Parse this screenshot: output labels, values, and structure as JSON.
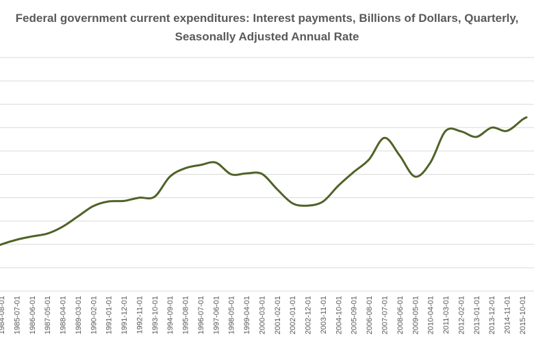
{
  "chart_data": {
    "type": "line",
    "title_lines": [
      "Federal government current expenditures: Interest payments, Billions of Dollars, Quarterly,",
      "Seasonally Adjusted Annual Rate"
    ],
    "xlabel": "",
    "ylabel": "",
    "grid": true,
    "legend": "none",
    "line_color": "#4f6228",
    "ylim": [
      0,
      500
    ],
    "x_tick_labels": [
      "1984-08-01",
      "1985-07-01",
      "1986-06-01",
      "1987-05-01",
      "1988-04-01",
      "1989-03-01",
      "1990-02-01",
      "1991-01-01",
      "1991-12-01",
      "1992-11-01",
      "1993-10-01",
      "1994-09-01",
      "1995-08-01",
      "1996-07-01",
      "1997-06-01",
      "1998-05-01",
      "1999-04-01",
      "2000-03-01",
      "2001-02-01",
      "2002-01-01",
      "2002-12-01",
      "2003-11-01",
      "2004-10-01",
      "2005-09-01",
      "2006-08-01",
      "2007-07-01",
      "2008-06-01",
      "2009-05-01",
      "2010-04-01",
      "2011-03-01",
      "2012-02-01",
      "2013-01-01",
      "2013-12-01",
      "2014-11-01",
      "2015-10-01"
    ],
    "series": [
      {
        "x": [
          "1983-10-01",
          "1984-08-01",
          "1985-07-01",
          "1986-06-01",
          "1987-05-01",
          "1988-04-01",
          "1989-03-01",
          "1990-02-01",
          "1991-01-01",
          "1991-12-01",
          "1992-11-01",
          "1993-10-01",
          "1994-09-01",
          "1995-08-01",
          "1996-07-01",
          "1997-06-01",
          "1998-05-01",
          "1999-04-01",
          "2000-03-01",
          "2001-02-01",
          "2002-01-01",
          "2002-12-01",
          "2003-11-01",
          "2004-10-01",
          "2005-09-01",
          "2006-08-01",
          "2007-07-01",
          "2008-06-01",
          "2009-05-01",
          "2010-04-01",
          "2011-03-01",
          "2012-02-01",
          "2013-01-01",
          "2013-12-01",
          "2014-11-01",
          "2015-10-01",
          "2016-01-01"
        ],
        "values": [
          88,
          100,
          110,
          117,
          123,
          138,
          160,
          182,
          192,
          193,
          200,
          202,
          245,
          263,
          270,
          275,
          250,
          252,
          251,
          218,
          188,
          183,
          192,
          226,
          255,
          282,
          328,
          290,
          245,
          275,
          343,
          342,
          330,
          350,
          343,
          367,
          372
        ]
      }
    ]
  }
}
